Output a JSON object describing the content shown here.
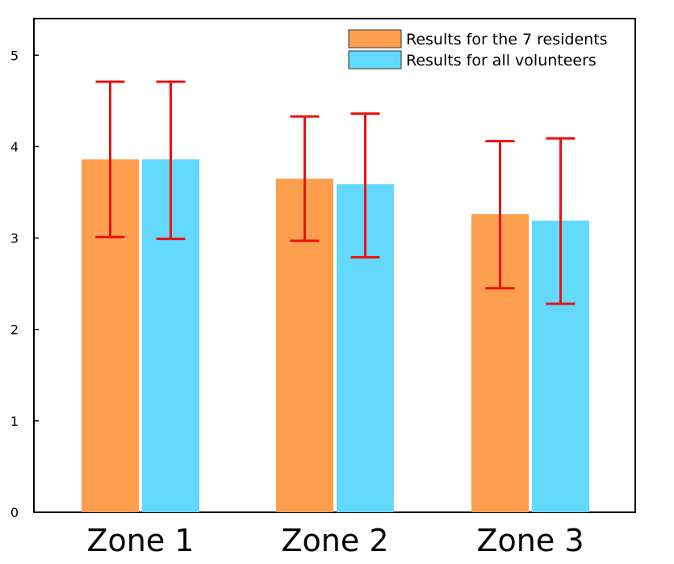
{
  "chart_data": {
    "type": "bar",
    "title": "",
    "xlabel": "",
    "ylabel": "",
    "categories": [
      "Zone 1",
      "Zone 2",
      "Zone 3"
    ],
    "ylim": [
      0,
      5.4
    ],
    "yticks": [
      0,
      1,
      2,
      3,
      4,
      5
    ],
    "grid": false,
    "legend": "top-right",
    "series": [
      {
        "name": "Results for the 7 residents",
        "color": "#fe9f4f",
        "values": [
          3.86,
          3.65,
          3.26
        ],
        "error_low": [
          3.01,
          2.97,
          2.45
        ],
        "error_high": [
          4.71,
          4.33,
          4.06
        ]
      },
      {
        "name": "Results for all volunteers",
        "color": "#63d9fe",
        "values": [
          3.86,
          3.59,
          3.19
        ],
        "error_low": [
          2.99,
          2.79,
          2.28
        ],
        "error_high": [
          4.71,
          4.36,
          4.09
        ]
      }
    ],
    "error_bar_color": "#ee1111"
  }
}
